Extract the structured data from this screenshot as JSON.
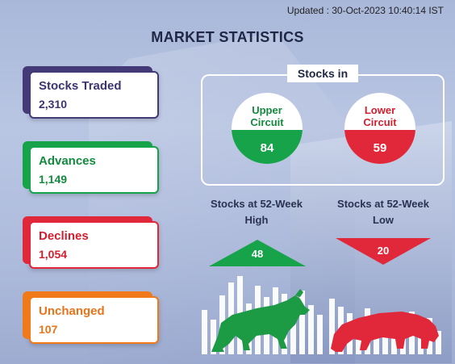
{
  "header": {
    "updated": "Updated : 30-Oct-2023 10:40:14 IST",
    "title": "MARKET STATISTICS"
  },
  "cards": {
    "traded": {
      "label": "Stocks Traded",
      "value": "2,310"
    },
    "advances": {
      "label": "Advances",
      "value": "1,149"
    },
    "declines": {
      "label": "Declines",
      "value": "1,054"
    },
    "unchanged": {
      "label": "Unchanged",
      "value": "107"
    }
  },
  "stocks_in": {
    "title": "Stocks in",
    "upper": {
      "label_line1": "Upper",
      "label_line2": "Circuit",
      "value": "84"
    },
    "lower": {
      "label_line1": "Lower",
      "label_line2": "Circuit",
      "value": "59"
    }
  },
  "week52": {
    "high": {
      "label_line1": "Stocks at 52-Week",
      "label_line2": "High",
      "value": "48"
    },
    "low": {
      "label_line1": "Stocks at 52-Week",
      "label_line2": "Low",
      "value": "20"
    }
  },
  "colors": {
    "green": "#16a34a",
    "red": "#e0283a",
    "purple": "#443a78",
    "orange": "#f07a1a",
    "navy": "#1f2745"
  },
  "icons": [
    "bull-icon",
    "bear-icon"
  ]
}
